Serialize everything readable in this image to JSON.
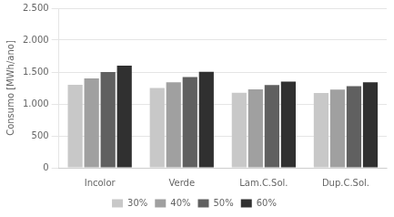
{
  "chart_data": {
    "type": "bar",
    "categories": [
      "Incolor",
      "Verde",
      "Lam.C.Sol.",
      "Dup.C.Sol."
    ],
    "series": [
      {
        "name": "30%",
        "color": "#c8c8c8",
        "values": [
          1300,
          1250,
          1175,
          1170
        ]
      },
      {
        "name": "40%",
        "color": "#a0a0a0",
        "values": [
          1400,
          1340,
          1230,
          1225
        ]
      },
      {
        "name": "50%",
        "color": "#606060",
        "values": [
          1500,
          1420,
          1295,
          1280
        ]
      },
      {
        "name": "60%",
        "color": "#303030",
        "values": [
          1600,
          1505,
          1350,
          1340
        ]
      }
    ],
    "ylabel": "Consumo [MWh/ano]",
    "ylim": [
      0,
      2500
    ],
    "yticks": [
      0,
      500,
      {
        "value": 1000,
        "label": "1.000"
      },
      {
        "value": 1500,
        "label": "1.500"
      },
      {
        "value": 2000,
        "label": "2.000"
      },
      {
        "value": 2500,
        "label": "2.500"
      }
    ],
    "grid": true,
    "legend": "bottom"
  }
}
